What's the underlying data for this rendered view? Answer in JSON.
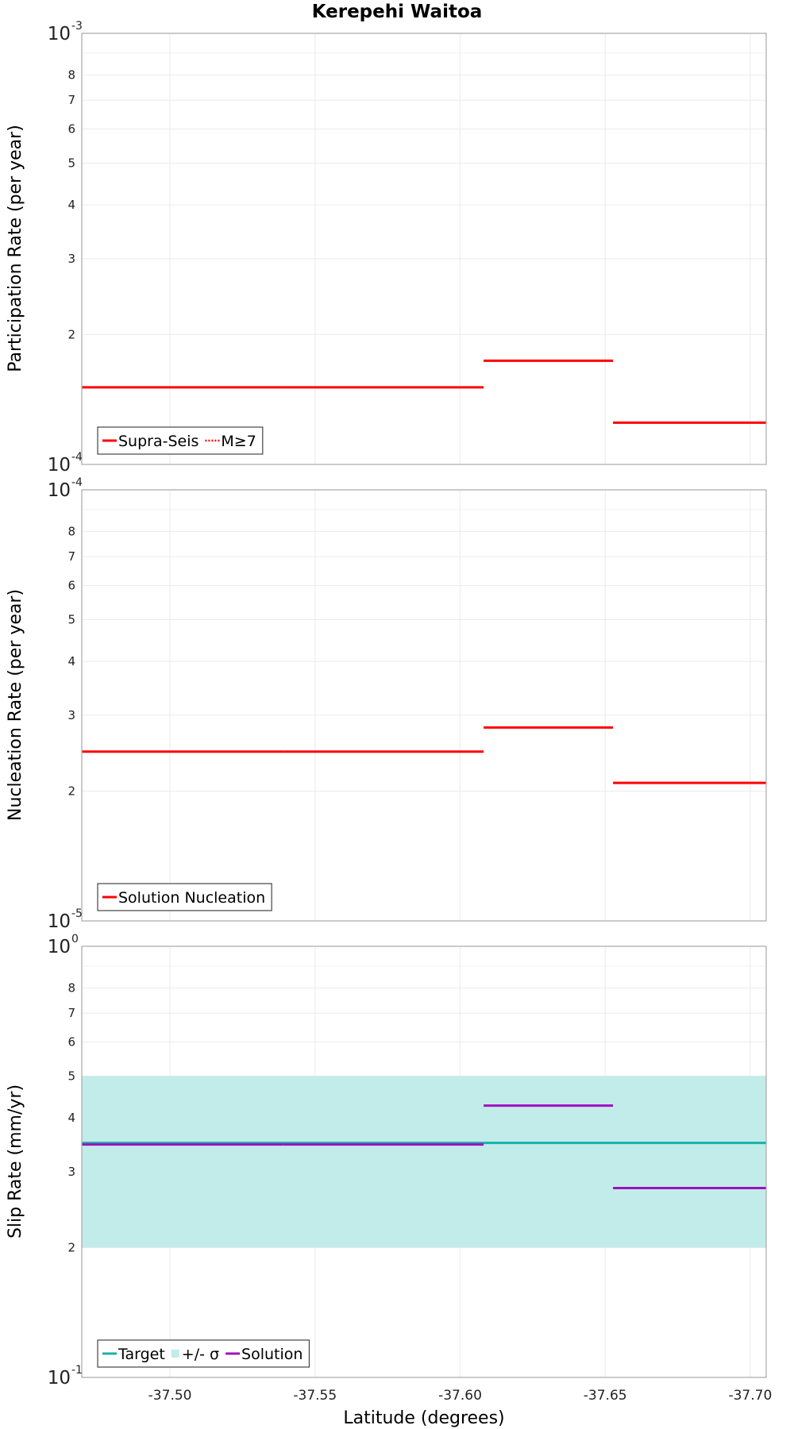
{
  "chart_data": {
    "title": "Kerepehi Waitoa",
    "xlabel": "Latitude (degrees)",
    "x_range": [
      -37.4696,
      -37.7055
    ],
    "x_ticks": [
      "-37.50",
      "-37.55",
      "-37.60",
      "-37.65",
      "-37.70"
    ],
    "x_tick_values": [
      -37.5,
      -37.55,
      -37.6,
      -37.65,
      -37.7
    ],
    "panels": [
      {
        "name": "participation",
        "type": "line",
        "ylabel": "Participation Rate (per year)",
        "yscale": "log",
        "ylim": [
          0.0001,
          0.001
        ],
        "y_ticks": [
          {
            "value": 0.0002,
            "label": "2"
          },
          {
            "value": 0.0003,
            "label": "3"
          },
          {
            "value": 0.0004,
            "label": "4"
          },
          {
            "value": 0.0005,
            "label": "5"
          },
          {
            "value": 0.0006,
            "label": "6"
          },
          {
            "value": 0.0007,
            "label": "7"
          },
          {
            "value": 0.0008,
            "label": "8"
          }
        ],
        "decade_top": {
          "base": "10",
          "exp": "-3"
        },
        "decade_bottom": {
          "base": "10",
          "exp": "-4"
        },
        "series": [
          {
            "name": "Supra-Seis",
            "color": "#ff0000",
            "style": "solid",
            "segments": [
              {
                "x": [
                  -37.4696,
                  -37.5389
                ],
                "y": 0.000151
              },
              {
                "x": [
                  -37.5389,
                  -37.6081
                ],
                "y": 0.000151
              },
              {
                "x": [
                  -37.6081,
                  -37.6527
                ],
                "y": 0.000174
              },
              {
                "x": [
                  -37.6527,
                  -37.7055
                ],
                "y": 0.000125
              }
            ]
          },
          {
            "name": "M≥7",
            "color": "#ff0000",
            "style": "dotted",
            "segments": [
              {
                "x": [
                  -37.4696,
                  -37.5389
                ],
                "y": 0.000151
              },
              {
                "x": [
                  -37.5389,
                  -37.6081
                ],
                "y": 0.000151
              },
              {
                "x": [
                  -37.6081,
                  -37.6527
                ],
                "y": 0.000174
              },
              {
                "x": [
                  -37.6527,
                  -37.7055
                ],
                "y": 0.000125
              }
            ]
          }
        ],
        "legend": [
          {
            "label": "Supra-Seis",
            "color": "#ff0000",
            "style": "solid"
          },
          {
            "label": "M≥7",
            "color": "#ff0000",
            "style": "dotted"
          }
        ]
      },
      {
        "name": "nucleation",
        "type": "line",
        "ylabel": "Nucleation Rate (per year)",
        "yscale": "log",
        "ylim": [
          1e-05,
          0.0001
        ],
        "y_ticks": [
          {
            "value": 2e-05,
            "label": "2"
          },
          {
            "value": 3e-05,
            "label": "3"
          },
          {
            "value": 4e-05,
            "label": "4"
          },
          {
            "value": 5e-05,
            "label": "5"
          },
          {
            "value": 6e-05,
            "label": "6"
          },
          {
            "value": 7e-05,
            "label": "7"
          },
          {
            "value": 8e-05,
            "label": "8"
          }
        ],
        "decade_top": {
          "base": "10",
          "exp": "-4"
        },
        "decade_bottom": {
          "base": "10",
          "exp": "-5"
        },
        "series": [
          {
            "name": "Solution Nucleation",
            "color": "#ff0000",
            "style": "solid",
            "segments": [
              {
                "x": [
                  -37.4696,
                  -37.5389
                ],
                "y": 2.47e-05
              },
              {
                "x": [
                  -37.5389,
                  -37.6081
                ],
                "y": 2.47e-05
              },
              {
                "x": [
                  -37.6081,
                  -37.6527
                ],
                "y": 2.81e-05
              },
              {
                "x": [
                  -37.6527,
                  -37.7055
                ],
                "y": 2.09e-05
              }
            ]
          }
        ],
        "legend": [
          {
            "label": "Solution Nucleation",
            "color": "#ff0000",
            "style": "solid"
          }
        ]
      },
      {
        "name": "slip",
        "type": "line",
        "ylabel": "Slip Rate (mm/yr)",
        "yscale": "log",
        "ylim": [
          0.1,
          1.0
        ],
        "y_ticks": [
          {
            "value": 0.2,
            "label": "2"
          },
          {
            "value": 0.3,
            "label": "3"
          },
          {
            "value": 0.4,
            "label": "4"
          },
          {
            "value": 0.5,
            "label": "5"
          },
          {
            "value": 0.6,
            "label": "6"
          },
          {
            "value": 0.7,
            "label": "7"
          },
          {
            "value": 0.8,
            "label": "8"
          }
        ],
        "decade_top": {
          "base": "10",
          "exp": "0"
        },
        "decade_bottom": {
          "base": "10",
          "exp": "-1"
        },
        "band": {
          "name": "+/- σ",
          "color": "#c2ecea",
          "x": [
            -37.4696,
            -37.7055
          ],
          "y": [
            0.2,
            0.5
          ]
        },
        "series": [
          {
            "name": "Target",
            "color": "#17b2ad",
            "style": "solid",
            "segments": [
              {
                "x": [
                  -37.4696,
                  -37.7055
                ],
                "y": 0.35
              }
            ]
          },
          {
            "name": "Solution",
            "color": "#a010c0",
            "style": "solid",
            "segments": [
              {
                "x": [
                  -37.4696,
                  -37.5389
                ],
                "y": 0.347
              },
              {
                "x": [
                  -37.5389,
                  -37.6081
                ],
                "y": 0.347
              },
              {
                "x": [
                  -37.6081,
                  -37.6527
                ],
                "y": 0.427
              },
              {
                "x": [
                  -37.6527,
                  -37.7055
                ],
                "y": 0.275
              }
            ]
          }
        ],
        "legend": [
          {
            "label": "Target",
            "color": "#17b2ad",
            "style": "solid"
          },
          {
            "label": "+/- σ",
            "color": "#c2ecea",
            "style": "band"
          },
          {
            "label": "Solution",
            "color": "#a010c0",
            "style": "solid"
          }
        ]
      }
    ]
  }
}
